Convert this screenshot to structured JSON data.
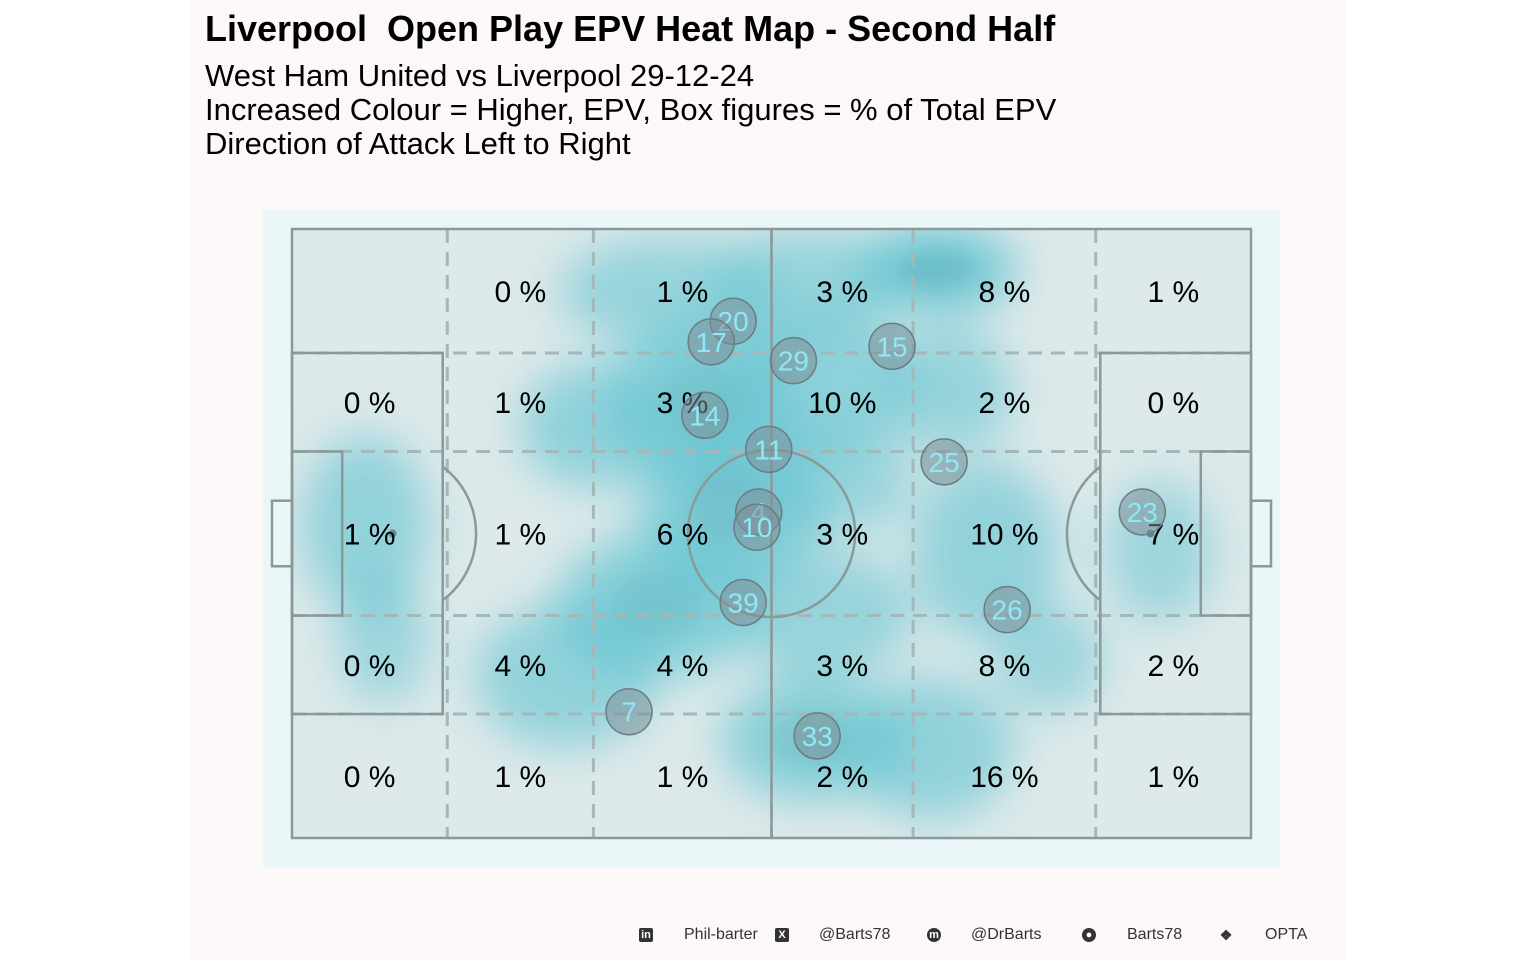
{
  "header": {
    "title": "Liverpool  Open Play EPV Heat Map - Second Half",
    "subtitle_lines": [
      "West Ham United vs Liverpool 29-12-24",
      "Increased Colour = Higher, EPV, Box figures = % of Total EPV",
      "Direction of Attack Left to Right"
    ]
  },
  "colors": {
    "panel_bg": "#fdf8f8",
    "pitch_bg": "#eaf6f8",
    "pitch_fill": "#dde9ea",
    "pitch_lines": "#8a9a9a",
    "grid_dash": "#a3b8b8",
    "heat": "#5fc3d0",
    "heat_dark": "#3f98a6",
    "player_circle": "#7d9098",
    "player_label": "#8ee8f5",
    "box_text": "#000000"
  },
  "chart_data": {
    "type": "heatmap",
    "title": "Liverpool  Open Play EPV Heat Map - Second Half",
    "xlabel": "",
    "ylabel": "",
    "pitch_units": {
      "x_range": [
        0,
        105
      ],
      "y_range": [
        0,
        68
      ]
    },
    "zone_x_edges": [
      0,
      17,
      33,
      52.5,
      68,
      88,
      105
    ],
    "zone_y_edges": [
      0,
      13.84,
      24.84,
      43.16,
      54.16,
      68
    ],
    "zones_pct": [
      [
        "",
        "0 %",
        "1 %",
        "3 %",
        "8 %",
        "1 %"
      ],
      [
        "0 %",
        "1 %",
        "3 %",
        "10 %",
        "2 %",
        "0 %"
      ],
      [
        "1 %",
        "1 %",
        "6 %",
        "3 %",
        "10 %",
        "7 %"
      ],
      [
        "0 %",
        "4 %",
        "4 %",
        "3 %",
        "8 %",
        "2 %"
      ],
      [
        "0 %",
        "1 %",
        "1 %",
        "2 %",
        "16 %",
        "1 %"
      ]
    ],
    "players": [
      {
        "number": "20",
        "x": 48.3,
        "y": 10.3
      },
      {
        "number": "17",
        "x": 45.9,
        "y": 12.6
      },
      {
        "number": "29",
        "x": 54.9,
        "y": 14.7
      },
      {
        "number": "15",
        "x": 65.7,
        "y": 13.1
      },
      {
        "number": "14",
        "x": 45.2,
        "y": 20.8
      },
      {
        "number": "11",
        "x": 52.2,
        "y": 24.6
      },
      {
        "number": "25",
        "x": 71.4,
        "y": 26.0
      },
      {
        "number": "4",
        "x": 51.1,
        "y": 31.6
      },
      {
        "number": "10",
        "x": 50.9,
        "y": 33.3
      },
      {
        "number": "23",
        "x": 93.1,
        "y": 31.6
      },
      {
        "number": "39",
        "x": 49.4,
        "y": 41.7
      },
      {
        "number": "26",
        "x": 78.3,
        "y": 42.5
      },
      {
        "number": "7",
        "x": 36.9,
        "y": 53.9
      },
      {
        "number": "33",
        "x": 57.5,
        "y": 56.6
      }
    ],
    "heat_blobs": [
      {
        "x": 70.5,
        "y": 4.5,
        "rx": 9,
        "ry": 5,
        "w": 1.0
      },
      {
        "x": 41,
        "y": 7,
        "rx": 12,
        "ry": 6,
        "w": 0.5
      },
      {
        "x": 56,
        "y": 6,
        "rx": 10,
        "ry": 6,
        "w": 0.45
      },
      {
        "x": 45,
        "y": 19,
        "rx": 10,
        "ry": 9,
        "w": 0.75
      },
      {
        "x": 33,
        "y": 22,
        "rx": 8,
        "ry": 7,
        "w": 0.6
      },
      {
        "x": 58,
        "y": 17,
        "rx": 10,
        "ry": 8,
        "w": 0.6
      },
      {
        "x": 48,
        "y": 31,
        "rx": 10,
        "ry": 9,
        "w": 0.8
      },
      {
        "x": 40,
        "y": 42,
        "rx": 11,
        "ry": 8,
        "w": 0.75
      },
      {
        "x": 30,
        "y": 50,
        "rx": 10,
        "ry": 8,
        "w": 0.55
      },
      {
        "x": 58,
        "y": 43,
        "rx": 10,
        "ry": 7,
        "w": 0.5
      },
      {
        "x": 76,
        "y": 36,
        "rx": 8,
        "ry": 10,
        "w": 0.55
      },
      {
        "x": 72,
        "y": 18,
        "rx": 7,
        "ry": 7,
        "w": 0.5
      },
      {
        "x": 57,
        "y": 57,
        "rx": 10,
        "ry": 7,
        "w": 0.7
      },
      {
        "x": 70,
        "y": 58,
        "rx": 9,
        "ry": 8,
        "w": 0.55
      },
      {
        "x": 8,
        "y": 33,
        "rx": 7,
        "ry": 10,
        "w": 0.55
      },
      {
        "x": 10,
        "y": 46,
        "rx": 5,
        "ry": 7,
        "w": 0.35
      },
      {
        "x": 95,
        "y": 36,
        "rx": 6,
        "ry": 8,
        "w": 0.35
      },
      {
        "x": 83,
        "y": 48,
        "rx": 6,
        "ry": 6,
        "w": 0.35
      },
      {
        "x": 60,
        "y": 28,
        "rx": 8,
        "ry": 6,
        "w": 0.45
      }
    ]
  },
  "footer": {
    "items": [
      {
        "icon": "linkedin-icon",
        "label": "Phil-barter"
      },
      {
        "icon": "x-icon",
        "label": "@Barts78"
      },
      {
        "icon": "mastodon-icon",
        "label": "@DrBarts"
      },
      {
        "icon": "github-icon",
        "label": "Barts78"
      },
      {
        "icon": "dropbox-icon",
        "label": "OPTA"
      }
    ]
  }
}
